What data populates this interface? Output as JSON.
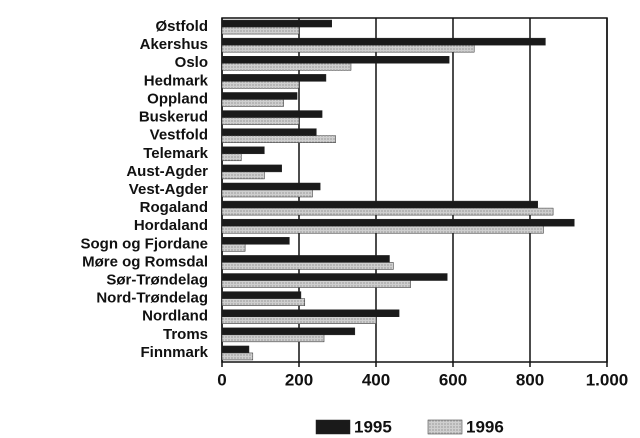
{
  "chart_data": {
    "type": "hbar",
    "categories": [
      "Østfold",
      "Akershus",
      "Oslo",
      "Hedmark",
      "Oppland",
      "Buskerud",
      "Vestfold",
      "Telemark",
      "Aust-Agder",
      "Vest-Agder",
      "Rogaland",
      "Hordaland",
      "Sogn og Fjordane",
      "Møre og Romsdal",
      "Sør-Trøndelag",
      "Nord-Trøndelag",
      "Nordland",
      "Troms",
      "Finnmark"
    ],
    "series": [
      {
        "name": "1995",
        "color": "#1a1a1a",
        "values": [
          285,
          840,
          590,
          270,
          195,
          260,
          245,
          110,
          155,
          255,
          820,
          915,
          175,
          435,
          585,
          205,
          460,
          345,
          70
        ]
      },
      {
        "name": "1996",
        "color": "#cfcfcf",
        "values": [
          200,
          655,
          335,
          200,
          160,
          200,
          295,
          50,
          110,
          235,
          860,
          835,
          60,
          445,
          490,
          215,
          400,
          265,
          80
        ]
      }
    ],
    "xlim": [
      0,
      1000
    ],
    "xticks": [
      0,
      200,
      400,
      600,
      800,
      {
        "value": 1000,
        "label": "1.000"
      }
    ],
    "grid": true
  }
}
